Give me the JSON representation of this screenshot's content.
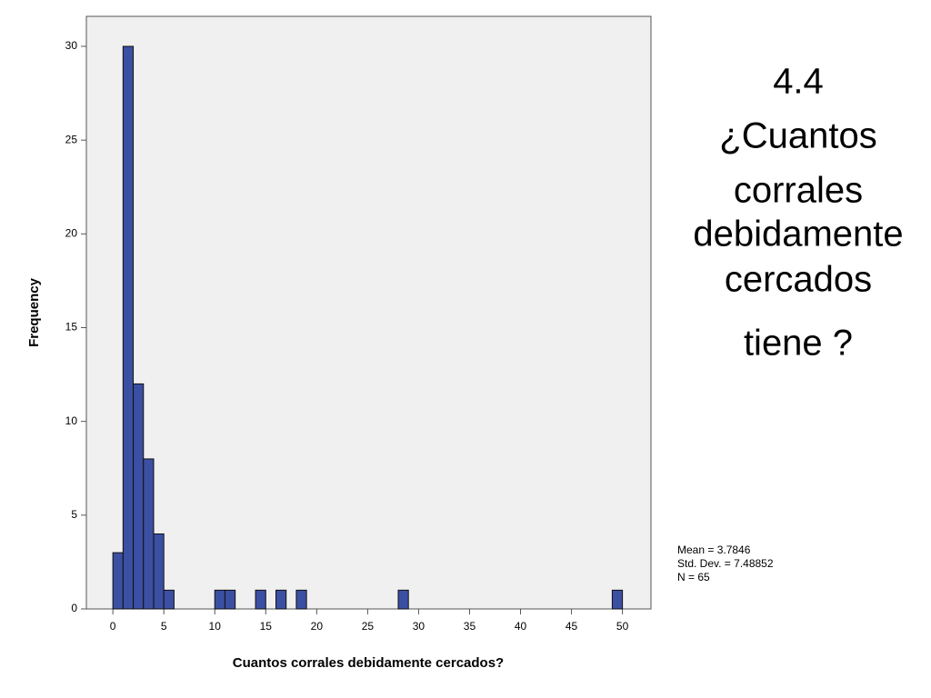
{
  "chart_data": {
    "type": "histogram",
    "xlabel": "Cuantos corrales debidamente cercados?",
    "ylabel": "Frequency",
    "bins": [
      0,
      1,
      2,
      3,
      4,
      5,
      6,
      7,
      8,
      9,
      10,
      11,
      12,
      13,
      14,
      15,
      16,
      17,
      18,
      19,
      20,
      21,
      22,
      23,
      24,
      25,
      26,
      27,
      28,
      29,
      30,
      31,
      32,
      33,
      34,
      35,
      36,
      37,
      38,
      39,
      40,
      41,
      42,
      43,
      44,
      45,
      46,
      47,
      48,
      49,
      50
    ],
    "values": [
      3,
      30,
      12,
      8,
      4,
      1,
      0,
      0,
      0,
      0,
      1,
      1,
      0,
      0,
      1,
      0,
      1,
      0,
      1,
      0,
      0,
      0,
      0,
      0,
      0,
      0,
      0,
      0,
      1,
      0,
      0,
      0,
      0,
      0,
      0,
      0,
      0,
      0,
      0,
      0,
      0,
      0,
      0,
      0,
      0,
      0,
      0,
      0,
      0,
      1
    ],
    "color": "#3b4fa3",
    "xlim": [
      -2.6,
      52.8
    ],
    "xticks": [
      0,
      5,
      10,
      15,
      20,
      25,
      30,
      35,
      40,
      45,
      50
    ],
    "ylim": [
      0,
      31.6
    ],
    "yticks": [
      0,
      5,
      10,
      15,
      20,
      25,
      30
    ],
    "annotations": [
      "Mean = 3.7846",
      "Std. Dev. = 7.48852",
      "N = 65"
    ]
  },
  "side_text": [
    "4.4",
    "¿Cuantos",
    "corrales",
    "debidamente",
    "cercados",
    "tiene ?"
  ]
}
